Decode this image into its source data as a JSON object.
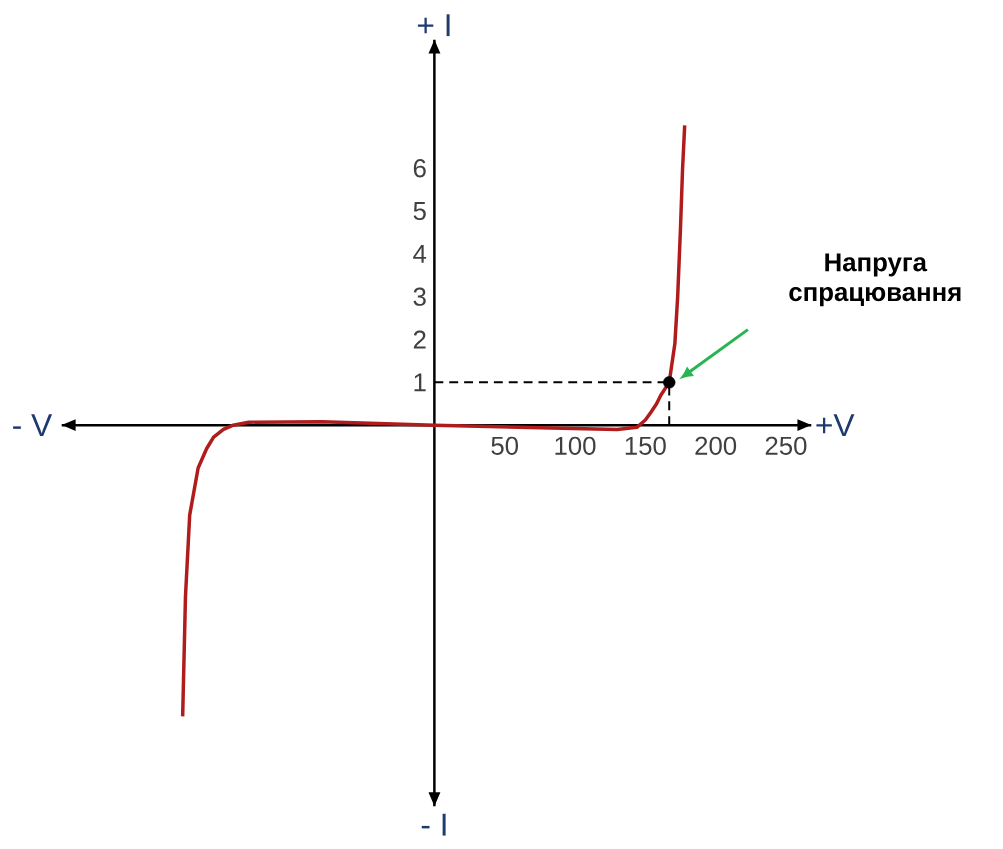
{
  "chart_data": {
    "type": "line",
    "xlabel": "+V",
    "ylabel": "+ I",
    "annotations": [
      "- V",
      "- I",
      "Напруга спрацювання"
    ],
    "series": [
      {
        "color": "#b01c1c",
        "x": [
          -179,
          -177,
          -174,
          -168,
          -162,
          -157,
          -150,
          -143,
          -132,
          -80,
          0,
          60,
          130,
          144,
          150,
          154,
          158,
          161,
          164,
          167,
          171,
          173,
          175,
          176.5,
          178
        ],
        "values": [
          -6.8,
          -4,
          -2.1,
          -1,
          -0.55,
          -0.28,
          -0.1,
          0,
          0.07,
          0.08,
          0,
          -0.05,
          -0.1,
          -0.05,
          0.12,
          0.3,
          0.5,
          0.7,
          0.85,
          1,
          1.9,
          3,
          4.6,
          6,
          7
        ]
      },
      {
        "color": "#000000",
        "line_style": "dashed",
        "x": [
          167,
          167
        ],
        "values": [
          0,
          1
        ]
      },
      {
        "type": "scatter",
        "color": "#000000",
        "x": [
          167
        ],
        "values": [
          1
        ]
      }
    ],
    "xlim": [
      -265,
      268
    ],
    "ylim": [
      -8.9,
      9
    ],
    "xticks": [
      50,
      100,
      150,
      200,
      250
    ],
    "yticks": [
      1,
      2,
      3,
      4,
      5,
      6
    ],
    "ref_lines": [
      {
        "axis": "y",
        "value": 1,
        "color": "#000000",
        "line_style": "dashed"
      }
    ],
    "line_style": "solid"
  }
}
